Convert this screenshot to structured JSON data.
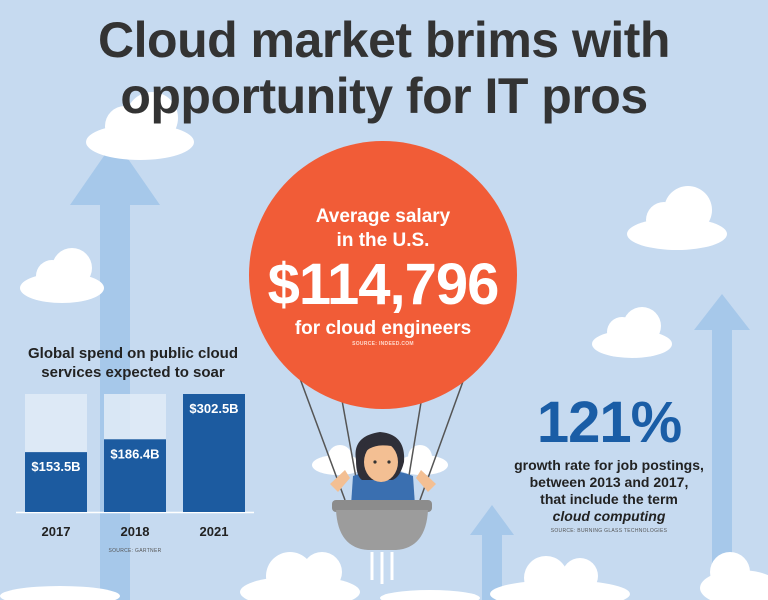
{
  "title": {
    "line1": "Cloud market brims with",
    "line2": "opportunity for IT pros"
  },
  "balloon": {
    "line1": "Average salary",
    "line2": "in the U.S.",
    "amount": "$114,796",
    "caption": "for cloud engineers",
    "source": "SOURCE: INDEED.COM"
  },
  "growth": {
    "value": "121%",
    "line1": "growth rate for job postings,",
    "line2": "between 2013 and 2017,",
    "line3": "that include the term",
    "line4": "cloud computing",
    "source": "SOURCE: BURNING GLASS TECHNOLOGIES"
  },
  "colors": {
    "background": "#c6daf0",
    "bar": "#1c5ba0",
    "balloon": "#f15c37",
    "accent_text": "#1a5da6"
  },
  "chart_data": {
    "type": "bar",
    "title": "Global spend on public cloud services expected to soar",
    "categories": [
      "2017",
      "2018",
      "2021"
    ],
    "values": [
      153.5,
      186.4,
      302.5
    ],
    "data_labels": [
      "$153.5B",
      "$186.4B",
      "$302.5B"
    ],
    "ylim": [
      0,
      302.5
    ],
    "grid": false,
    "source": "SOURCE: GARTNER"
  }
}
